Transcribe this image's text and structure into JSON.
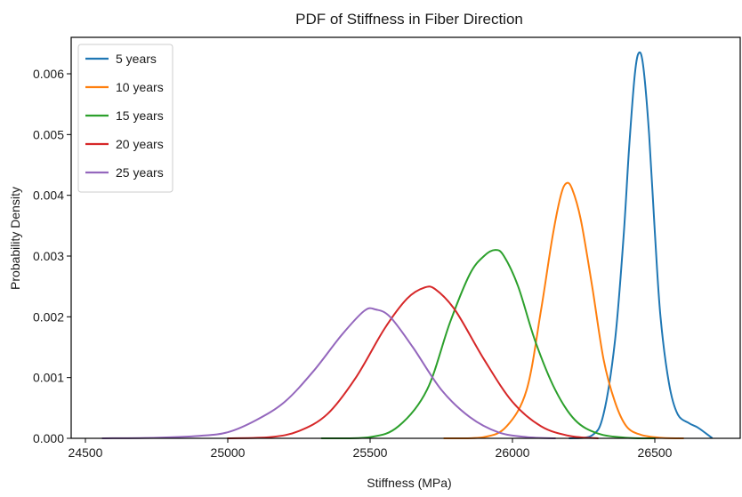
{
  "chart_data": {
    "type": "line",
    "title": "PDF of Stiffness in Fiber Direction",
    "xlabel": "Stiffness (MPa)",
    "ylabel": "Probability Density",
    "xlim": [
      24450,
      26800
    ],
    "ylim": [
      0,
      0.0066
    ],
    "xticks": [
      24500,
      25000,
      25500,
      26000,
      26500
    ],
    "xtick_labels": [
      "24500",
      "25000",
      "25500",
      "26000",
      "26500"
    ],
    "yticks": [
      0,
      0.001,
      0.002,
      0.003,
      0.004,
      0.005,
      0.006
    ],
    "ytick_labels": [
      "0.000",
      "0.001",
      "0.002",
      "0.003",
      "0.004",
      "0.005",
      "0.006"
    ],
    "grid": false,
    "legend_position": "top-left",
    "series": [
      {
        "name": "5 years",
        "color": "#1f77b4",
        "points": [
          [
            26200,
            0.0
          ],
          [
            26280,
            5e-05
          ],
          [
            26320,
            0.0004
          ],
          [
            26360,
            0.0016
          ],
          [
            26390,
            0.0033
          ],
          [
            26410,
            0.0048
          ],
          [
            26430,
            0.006
          ],
          [
            26445,
            0.00635
          ],
          [
            26460,
            0.0061
          ],
          [
            26480,
            0.005
          ],
          [
            26500,
            0.0034
          ],
          [
            26520,
            0.002
          ],
          [
            26550,
            0.0009
          ],
          [
            26580,
            0.0004
          ],
          [
            26620,
            0.00025
          ],
          [
            26650,
            0.00018
          ],
          [
            26680,
            8e-05
          ],
          [
            26700,
            1e-05
          ]
        ]
      },
      {
        "name": "10 years",
        "color": "#ff7f0e",
        "points": [
          [
            25760,
            0.0
          ],
          [
            25900,
            2e-05
          ],
          [
            25980,
            0.0002
          ],
          [
            26050,
            0.0008
          ],
          [
            26100,
            0.0021
          ],
          [
            26140,
            0.0033
          ],
          [
            26170,
            0.004
          ],
          [
            26190,
            0.0042
          ],
          [
            26210,
            0.0041
          ],
          [
            26240,
            0.0036
          ],
          [
            26280,
            0.0025
          ],
          [
            26320,
            0.0013
          ],
          [
            26360,
            0.0006
          ],
          [
            26400,
            0.0002
          ],
          [
            26450,
            6e-05
          ],
          [
            26520,
            1e-05
          ],
          [
            26600,
            0.0
          ]
        ]
      },
      {
        "name": "15 years",
        "color": "#2ca02c",
        "points": [
          [
            25330,
            0.0
          ],
          [
            25500,
            2e-05
          ],
          [
            25600,
            0.0002
          ],
          [
            25700,
            0.0008
          ],
          [
            25780,
            0.0019
          ],
          [
            25850,
            0.0027
          ],
          [
            25900,
            0.003
          ],
          [
            25940,
            0.0031
          ],
          [
            25970,
            0.003
          ],
          [
            26020,
            0.0025
          ],
          [
            26080,
            0.0016
          ],
          [
            26150,
            0.0008
          ],
          [
            26220,
            0.0003
          ],
          [
            26300,
            8e-05
          ],
          [
            26400,
            1e-05
          ],
          [
            26500,
            0.0
          ]
        ]
      },
      {
        "name": "20 years",
        "color": "#d62728",
        "points": [
          [
            25000,
            0.0
          ],
          [
            25150,
            2e-05
          ],
          [
            25250,
            0.00012
          ],
          [
            25350,
            0.0004
          ],
          [
            25450,
            0.001
          ],
          [
            25550,
            0.0018
          ],
          [
            25630,
            0.0023
          ],
          [
            25690,
            0.00248
          ],
          [
            25730,
            0.00245
          ],
          [
            25800,
            0.0021
          ],
          [
            25900,
            0.0013
          ],
          [
            26000,
            0.0006
          ],
          [
            26100,
            0.0002
          ],
          [
            26200,
            4e-05
          ],
          [
            26300,
            0.0
          ]
        ]
      },
      {
        "name": "25 years",
        "color": "#9467bd",
        "points": [
          [
            24560,
            0.0
          ],
          [
            24750,
            1e-05
          ],
          [
            24900,
            4e-05
          ],
          [
            25000,
            0.0001
          ],
          [
            25100,
            0.0003
          ],
          [
            25200,
            0.0006
          ],
          [
            25300,
            0.0011
          ],
          [
            25400,
            0.0017
          ],
          [
            25480,
            0.0021
          ],
          [
            25520,
            0.00212
          ],
          [
            25570,
            0.002
          ],
          [
            25650,
            0.0015
          ],
          [
            25750,
            0.0008
          ],
          [
            25850,
            0.00035
          ],
          [
            25950,
            0.0001
          ],
          [
            26050,
            2e-05
          ],
          [
            26150,
            0.0
          ]
        ]
      }
    ]
  }
}
